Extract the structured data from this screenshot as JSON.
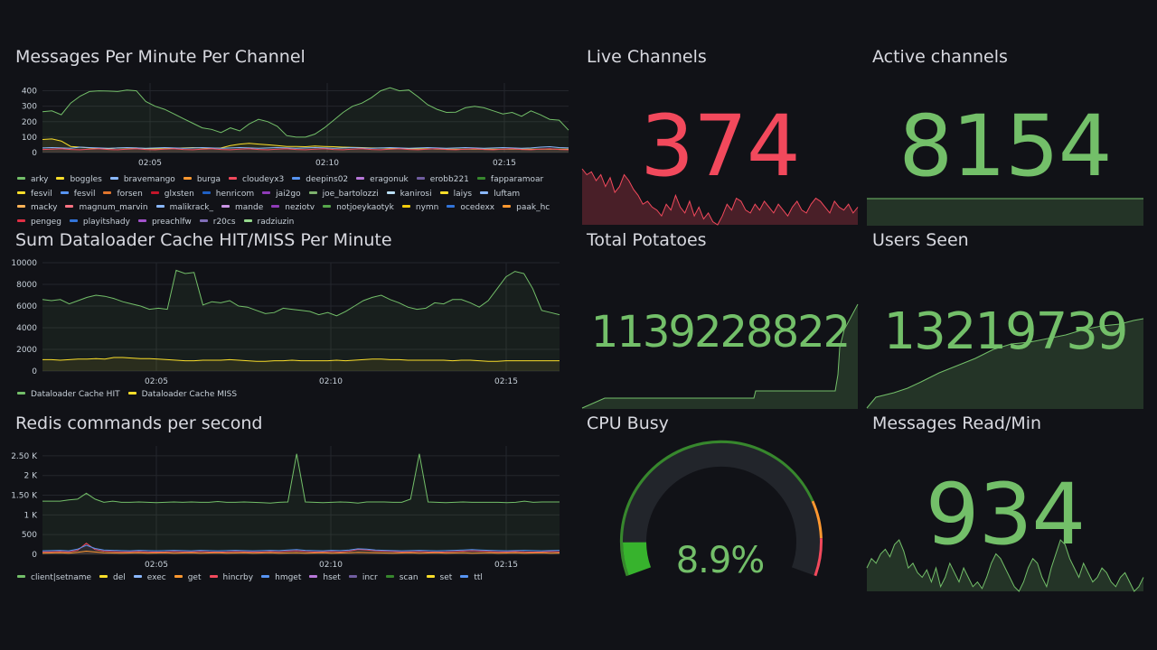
{
  "colors": {
    "background": "#111217",
    "green": "#73bf69",
    "red": "#f2495c",
    "yellow": "#fade2a",
    "gauge_track": "#22252b"
  },
  "panels": {
    "messages_per_minute": {
      "title": "Messages Per Minute Per Channel",
      "y_ticks": [
        "400",
        "300",
        "200",
        "100",
        "0"
      ],
      "x_ticks": [
        "02:05",
        "02:10",
        "02:15"
      ],
      "legend": [
        {
          "label": "arky",
          "color": "#73bf69"
        },
        {
          "label": "boggles",
          "color": "#fade2a"
        },
        {
          "label": "bravemango",
          "color": "#8ab8ff"
        },
        {
          "label": "burga",
          "color": "#ff9830"
        },
        {
          "label": "cloudeyx3",
          "color": "#f2495c"
        },
        {
          "label": "deepins02",
          "color": "#5794f2"
        },
        {
          "label": "eragonuk",
          "color": "#b877d9"
        },
        {
          "label": "erobb221",
          "color": "#705da0"
        },
        {
          "label": "fapparamoar",
          "color": "#37872d"
        },
        {
          "label": "fesvil",
          "color": "#fade2a"
        },
        {
          "label": "fesvil",
          "color": "#5794f2"
        },
        {
          "label": "forsen",
          "color": "#e0752d"
        },
        {
          "label": "glxsten",
          "color": "#c4162a"
        },
        {
          "label": "henricom",
          "color": "#1f60c4"
        },
        {
          "label": "jai2go",
          "color": "#8f3bb8"
        },
        {
          "label": "joe_bartolozzi",
          "color": "#7eb26d"
        },
        {
          "label": "kanirosi",
          "color": "#badff4"
        },
        {
          "label": "laiys",
          "color": "#fade2a"
        },
        {
          "label": "luftam",
          "color": "#8ab8ff"
        },
        {
          "label": "macky",
          "color": "#ffb357"
        },
        {
          "label": "magnum_marvin",
          "color": "#ff7383"
        },
        {
          "label": "malikrack_",
          "color": "#8ab8ff"
        },
        {
          "label": "mande",
          "color": "#ca95e5"
        },
        {
          "label": "neziotv",
          "color": "#8f3bb8"
        },
        {
          "label": "notjoeykaotyk",
          "color": "#56a64b"
        },
        {
          "label": "nymn",
          "color": "#f2cc0c"
        },
        {
          "label": "ocedexx",
          "color": "#3274d9"
        },
        {
          "label": "paak_hc",
          "color": "#ff9830"
        },
        {
          "label": "pengeg",
          "color": "#e02f44"
        },
        {
          "label": "playitshady",
          "color": "#3274d9"
        },
        {
          "label": "preachlfw",
          "color": "#a352cc"
        },
        {
          "label": "r20cs",
          "color": "#806eb7"
        },
        {
          "label": "radziuzin",
          "color": "#96d98d"
        }
      ],
      "chart_data": {
        "type": "line",
        "ylim": [
          0,
          450
        ],
        "series": [
          {
            "name": "arky",
            "values": [
              265,
              270,
              245,
              320,
              365,
              395,
              400,
              398,
              395,
              405,
              400,
              330,
              300,
              280,
              250,
              220,
              190,
              160,
              150,
              130,
              160,
              140,
              185,
              215,
              200,
              170,
              110,
              100,
              100,
              120,
              160,
              210,
              260,
              300,
              320,
              355,
              400,
              420,
              400,
              405,
              360,
              310,
              280,
              260,
              262,
              290,
              300,
              290,
              270,
              250,
              260,
              235,
              270,
              245,
              215,
              210,
              145
            ]
          },
          {
            "name": "boggles",
            "values": [
              85,
              88,
              75,
              40,
              35,
              30,
              28,
              25,
              30,
              30,
              30,
              26,
              25,
              25,
              28,
              30,
              32,
              30,
              28,
              30,
              45,
              55,
              60,
              55,
              50,
              45,
              40,
              40,
              38,
              42,
              40,
              38,
              35,
              34,
              32,
              30,
              30,
              28,
              26,
              25,
              24,
              24,
              23,
              22,
              22,
              22,
              22,
              22,
              22,
              22,
              22,
              22,
              22,
              22,
              22,
              22,
              22
            ]
          },
          {
            "name": "bravemango",
            "values": [
              30,
              32,
              30,
              28,
              35,
              32,
              30,
              28,
              30,
              32,
              30,
              28,
              30,
              32,
              30,
              28,
              30,
              32,
              30,
              28,
              30,
              32,
              30,
              28,
              30,
              32,
              30,
              28,
              30,
              32,
              30,
              28,
              30,
              32,
              30,
              28,
              30,
              32,
              30,
              28,
              30,
              32,
              30,
              28,
              30,
              32,
              30,
              28,
              30,
              32,
              30,
              28,
              30,
              35,
              38,
              32,
              30
            ]
          },
          {
            "name": "cloudeyx3",
            "values": [
              20,
              22,
              25,
              20,
              18,
              22,
              25,
              20,
              18,
              22,
              25,
              20,
              18,
              22,
              25,
              20,
              18,
              22,
              25,
              20,
              18,
              22,
              25,
              20,
              18,
              22,
              25,
              20,
              18,
              22,
              25,
              20,
              18,
              22,
              25,
              20,
              18,
              22,
              25,
              20,
              18,
              22,
              25,
              20,
              18,
              22,
              25,
              20,
              18,
              22,
              25,
              20,
              18,
              22,
              25,
              20,
              18
            ]
          }
        ]
      }
    },
    "dataloader_cache": {
      "title": "Sum Dataloader Cache HIT/MISS Per Minute",
      "y_ticks": [
        "10000",
        "8000",
        "6000",
        "4000",
        "2000",
        "0"
      ],
      "x_ticks": [
        "02:05",
        "02:10",
        "02:15"
      ],
      "legend": [
        {
          "label": "Dataloader Cache HIT",
          "color": "#73bf69"
        },
        {
          "label": "Dataloader Cache MISS",
          "color": "#fade2a"
        }
      ],
      "chart_data": {
        "type": "line",
        "ylim": [
          0,
          10000
        ],
        "series": [
          {
            "name": "Dataloader Cache HIT",
            "values": [
              6600,
              6500,
              6600,
              6200,
              6500,
              6800,
              7000,
              6900,
              6700,
              6400,
              6200,
              6000,
              5700,
              5800,
              5700,
              9300,
              9000,
              9100,
              6100,
              6400,
              6300,
              6500,
              6000,
              5900,
              5600,
              5300,
              5400,
              5800,
              5700,
              5600,
              5500,
              5200,
              5400,
              5100,
              5500,
              6000,
              6500,
              6800,
              7000,
              6600,
              6300,
              5900,
              5700,
              5800,
              6300,
              6200,
              6600,
              6600,
              6300,
              5900,
              6500,
              7600,
              8700,
              9200,
              9000,
              7600,
              5600,
              5400,
              5200
            ]
          },
          {
            "name": "Dataloader Cache MISS",
            "values": [
              1050,
              1050,
              1000,
              1050,
              1100,
              1100,
              1150,
              1100,
              1250,
              1250,
              1200,
              1150,
              1150,
              1100,
              1050,
              1000,
              950,
              950,
              1000,
              1000,
              1000,
              1050,
              1000,
              950,
              900,
              900,
              950,
              950,
              1000,
              950,
              950,
              950,
              950,
              1000,
              950,
              1000,
              1050,
              1100,
              1100,
              1050,
              1050,
              1000,
              1000,
              1000,
              1000,
              1000,
              950,
              1000,
              1000,
              950,
              900,
              900,
              950,
              950,
              950,
              950,
              950,
              950,
              950
            ]
          }
        ]
      }
    },
    "redis_commands": {
      "title": "Redis commands per second",
      "y_ticks": [
        "2.50 K",
        "2 K",
        "1.50 K",
        "1 K",
        "500",
        "0"
      ],
      "x_ticks": [
        "02:05",
        "02:10",
        "02:15"
      ],
      "legend": [
        {
          "label": "client|setname",
          "color": "#73bf69"
        },
        {
          "label": "del",
          "color": "#fade2a"
        },
        {
          "label": "exec",
          "color": "#8ab8ff"
        },
        {
          "label": "get",
          "color": "#ff9830"
        },
        {
          "label": "hincrby",
          "color": "#f2495c"
        },
        {
          "label": "hmget",
          "color": "#5794f2"
        },
        {
          "label": "hset",
          "color": "#b877d9"
        },
        {
          "label": "incr",
          "color": "#705da0"
        },
        {
          "label": "scan",
          "color": "#37872d"
        },
        {
          "label": "set",
          "color": "#fade2a"
        },
        {
          "label": "ttl",
          "color": "#5794f2"
        }
      ],
      "chart_data": {
        "type": "line",
        "ylim": [
          0,
          2750
        ],
        "series": [
          {
            "name": "client|setname",
            "values": [
              1350,
              1350,
              1350,
              1380,
              1400,
              1550,
              1400,
              1320,
              1350,
              1320,
              1320,
              1330,
              1320,
              1310,
              1320,
              1330,
              1320,
              1330,
              1320,
              1320,
              1340,
              1320,
              1320,
              1330,
              1320,
              1310,
              1300,
              1320,
              1330,
              2550,
              1330,
              1320,
              1310,
              1320,
              1330,
              1320,
              1300,
              1330,
              1330,
              1330,
              1320,
              1320,
              1400,
              2550,
              1330,
              1320,
              1310,
              1320,
              1330,
              1320,
              1320,
              1320,
              1320,
              1310,
              1320,
              1350,
              1320,
              1330,
              1330,
              1330
            ]
          },
          {
            "name": "hincrby",
            "values": [
              60,
              65,
              70,
              60,
              100,
              280,
              120,
              80,
              70,
              60,
              65,
              70,
              60,
              55,
              60,
              70,
              65,
              60,
              70,
              60,
              55,
              60,
              70,
              65,
              60,
              60,
              70,
              65,
              80,
              90,
              70,
              60,
              65,
              70,
              60,
              80,
              120,
              110,
              90,
              80,
              70,
              60,
              65,
              70,
              60,
              55,
              60,
              70,
              80,
              90,
              80,
              70,
              60,
              65,
              70,
              60,
              55,
              60,
              70,
              65
            ]
          },
          {
            "name": "hmget",
            "values": [
              90,
              95,
              100,
              90,
              130,
              230,
              150,
              110,
              100,
              95,
              90,
              100,
              95,
              90,
              95,
              100,
              95,
              90,
              100,
              95,
              90,
              95,
              100,
              95,
              90,
              95,
              100,
              95,
              110,
              120,
              100,
              95,
              90,
              100,
              95,
              110,
              140,
              130,
              110,
              100,
              95,
              90,
              95,
              100,
              95,
              90,
              95,
              100,
              110,
              120,
              110,
              100,
              95,
              90,
              95,
              100,
              95,
              90,
              95,
              100
            ]
          },
          {
            "name": "get",
            "values": [
              30,
              35,
              40,
              30,
              50,
              80,
              60,
              40,
              35,
              30,
              35,
              40,
              30,
              35,
              40,
              30,
              35,
              40,
              30,
              35,
              40,
              30,
              35,
              40,
              30,
              35,
              40,
              30,
              35,
              40,
              30,
              35,
              40,
              30,
              35,
              40,
              50,
              45,
              40,
              35,
              30,
              35,
              40,
              30,
              35,
              40,
              30,
              35,
              40,
              30,
              35,
              40,
              30,
              35,
              40,
              30,
              35,
              40,
              30,
              35
            ]
          }
        ]
      }
    },
    "live_channels": {
      "title": "Live Channels",
      "value": "374",
      "sparkline": [
        100,
        90,
        95,
        80,
        90,
        70,
        85,
        60,
        70,
        90,
        80,
        65,
        55,
        40,
        45,
        35,
        30,
        20,
        40,
        30,
        55,
        35,
        25,
        45,
        20,
        35,
        15,
        25,
        10,
        5,
        20,
        40,
        30,
        50,
        45,
        30,
        25,
        40,
        30,
        45,
        35,
        25,
        40,
        30,
        20,
        35,
        45,
        30,
        25,
        40,
        50,
        45,
        35,
        25,
        45,
        35,
        30,
        40,
        25,
        35
      ]
    },
    "active_channels": {
      "title": "Active channels",
      "value": "8154"
    },
    "total_potatoes": {
      "title": "Total Potatoes",
      "value": "1139228822"
    },
    "users_seen": {
      "title": "Users Seen",
      "value": "13219739"
    },
    "cpu_busy": {
      "title": "CPU Busy",
      "value": "8.9%",
      "percent": 8.9
    },
    "messages_read": {
      "title": "Messages Read/Min",
      "value": "934",
      "sparkline": [
        30,
        40,
        35,
        45,
        50,
        42,
        55,
        60,
        48,
        30,
        35,
        25,
        20,
        28,
        15,
        30,
        10,
        20,
        35,
        25,
        15,
        30,
        20,
        10,
        15,
        8,
        20,
        35,
        45,
        40,
        30,
        20,
        10,
        5,
        15,
        30,
        40,
        35,
        20,
        10,
        30,
        45,
        60,
        55,
        40,
        30,
        20,
        35,
        25,
        15,
        20,
        30,
        25,
        15,
        10,
        20,
        25,
        15,
        5,
        10,
        20
      ]
    }
  }
}
